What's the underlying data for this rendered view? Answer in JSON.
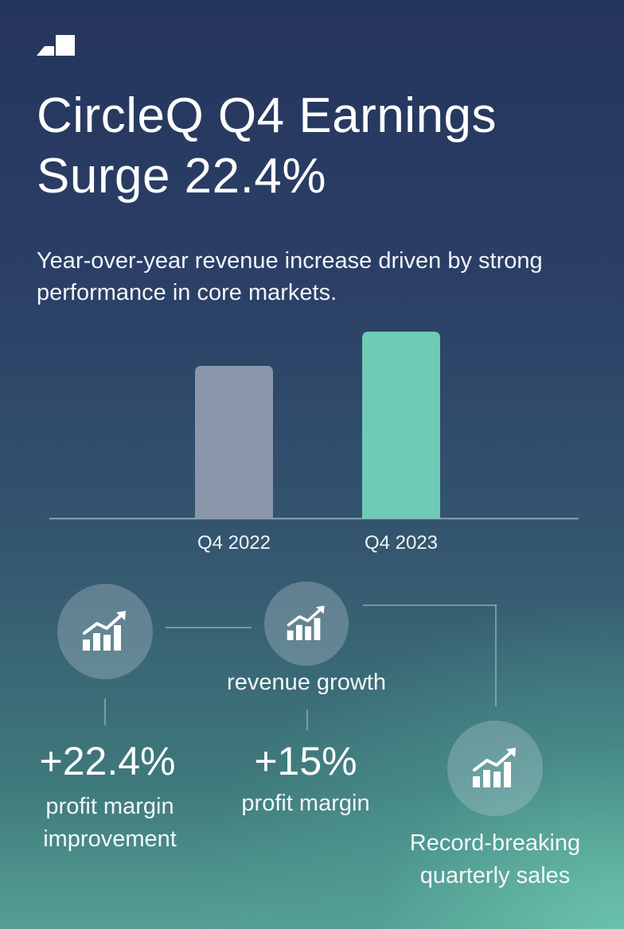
{
  "header": {
    "title": "CircleQ Q4 Earnings Surge 22.4%",
    "subtitle": "Year-over-year revenue increase driven by strong performance in core markets."
  },
  "chart_data": {
    "type": "bar",
    "categories": [
      "Q4 2022",
      "Q4 2023"
    ],
    "values": [
      100,
      122.4
    ],
    "ylim": [
      0,
      125
    ],
    "grid": false,
    "colors": [
      "#8b96aa",
      "#6fcbb5"
    ]
  },
  "stats": {
    "revenue_growth_label": "revenue growth",
    "margin_improvement": {
      "value": "+22.4%",
      "label": "profit margin improvement"
    },
    "profit_margin": {
      "value": "+15%",
      "label": "profit margin"
    },
    "record_sales_label": "Record-breaking quarterly sales"
  },
  "icons": [
    "logo-icon",
    "growth-chart-icon"
  ]
}
